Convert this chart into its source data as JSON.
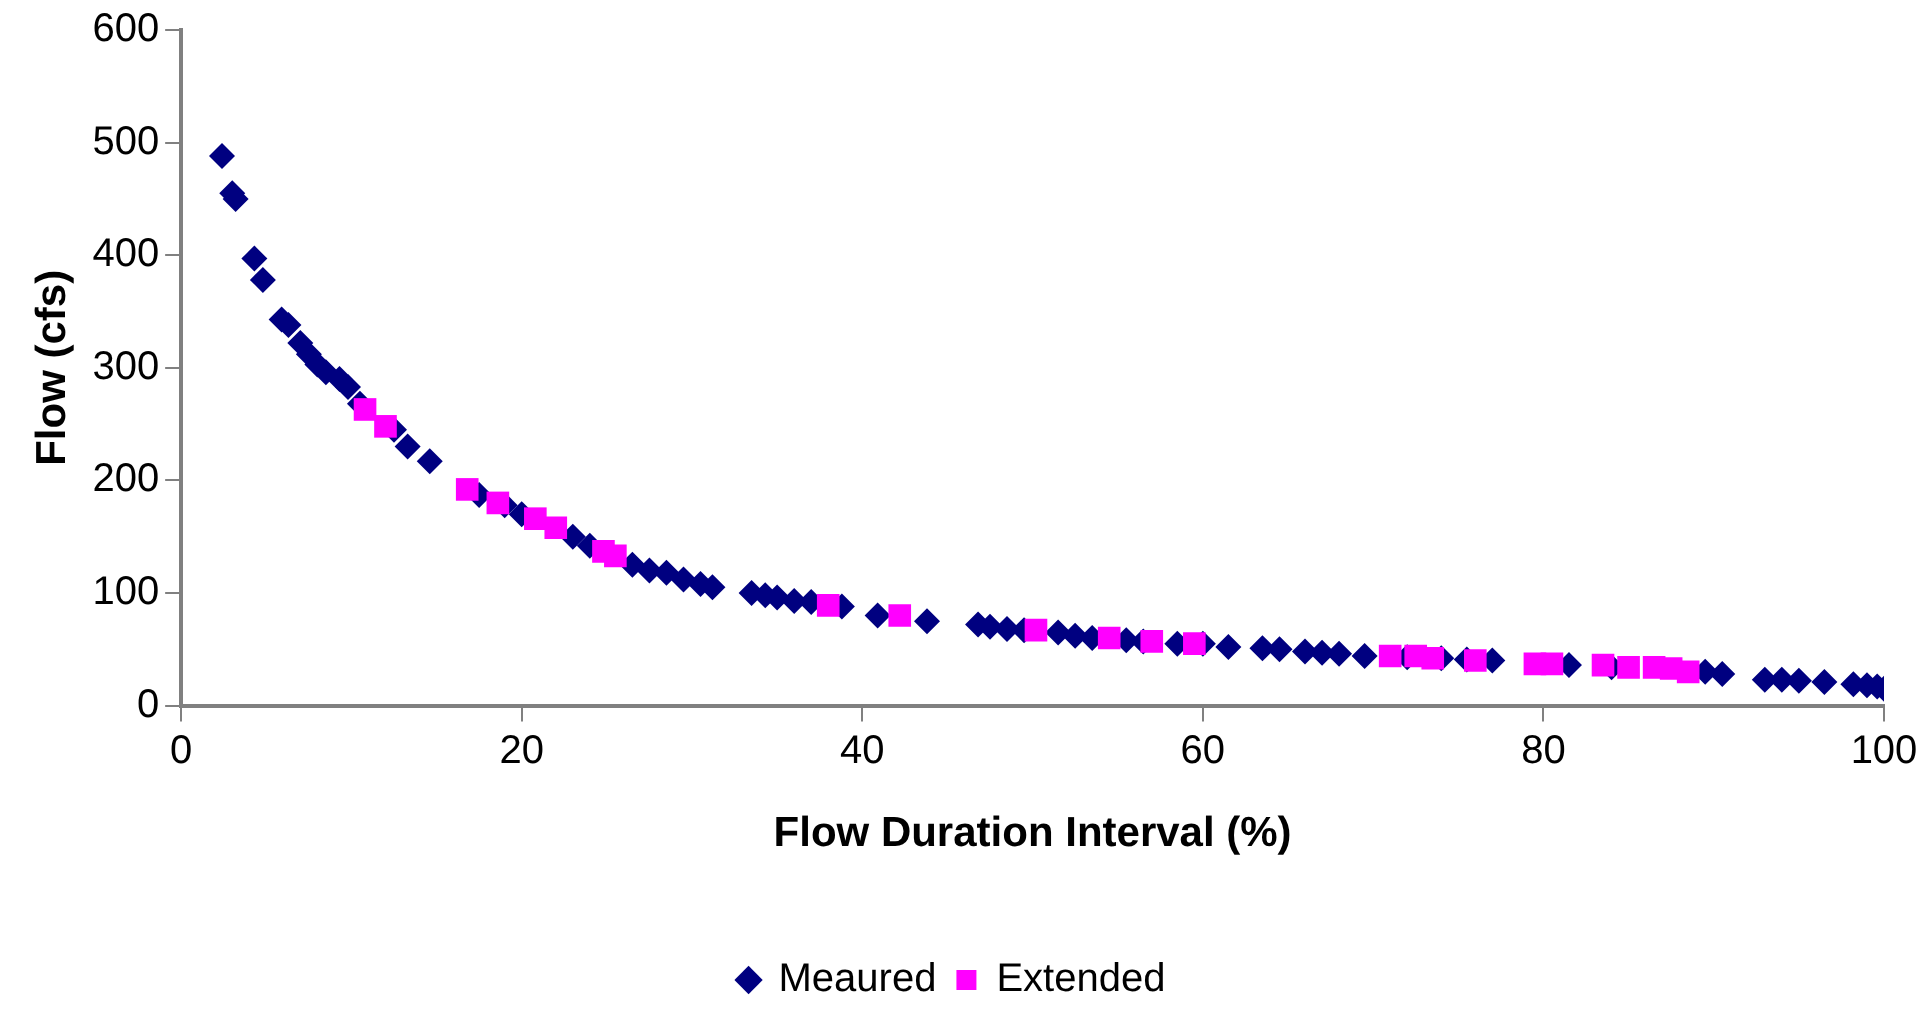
{
  "chart_data": {
    "type": "scatter",
    "xlabel": "Flow Duration Interval (%)",
    "ylabel": "Flow (cfs)",
    "xlim": [
      0,
      100
    ],
    "xticks": [
      0,
      20,
      40,
      60,
      80,
      100
    ],
    "ylim": [
      0,
      600
    ],
    "yticks": [
      0,
      100,
      200,
      300,
      400,
      500,
      600
    ],
    "grid": false,
    "legend": "bottom",
    "series": [
      {
        "name": "Meaured",
        "color": "#000080",
        "marker": "diamond",
        "x": [
          2.4,
          3.0,
          3.2,
          4.3,
          4.8,
          5.9,
          6.3,
          7.0,
          7.5,
          8.0,
          8.5,
          9.3,
          9.8,
          10.5,
          12.5,
          13.3,
          14.6,
          17.5,
          19,
          20,
          23,
          24,
          26.5,
          27.5,
          28.5,
          29.5,
          30.5,
          31.2,
          33.5,
          34.3,
          35,
          36,
          37,
          38.8,
          40.9,
          43.8,
          46.8,
          47.5,
          48.5,
          49.5,
          51.5,
          52.5,
          53.5,
          55.5,
          56.5,
          58.5,
          60,
          61.5,
          63.5,
          64.5,
          66,
          67,
          68,
          69.5,
          72,
          74,
          75.5,
          77,
          81.5,
          84,
          89.5,
          90.5,
          93,
          94,
          95,
          96.5,
          98.2,
          99,
          99.6,
          100
        ],
        "values": [
          488,
          455,
          450,
          397,
          378,
          343,
          338,
          322,
          312,
          303,
          296,
          290,
          283,
          268,
          245,
          230,
          217,
          187,
          178,
          170,
          150,
          142,
          125,
          120,
          118,
          112,
          108,
          105,
          100,
          98,
          96,
          93,
          92,
          88,
          80,
          75,
          72,
          70,
          68,
          67,
          65,
          62,
          60,
          58,
          57,
          55,
          55,
          52,
          51,
          50,
          48,
          47,
          46,
          44,
          43,
          42,
          41,
          40,
          36,
          34,
          30,
          28,
          23,
          23,
          22,
          21,
          19,
          18,
          17,
          15
        ]
      },
      {
        "name": "Extended",
        "color": "#ff00ff",
        "marker": "square",
        "x": [
          10.8,
          12,
          16.8,
          18.6,
          20.8,
          22,
          24.8,
          25.5,
          38,
          42.2,
          50.2,
          54.5,
          57,
          59.5,
          71,
          72.5,
          73.5,
          76,
          79.5,
          80.5,
          83.5,
          85,
          86.5,
          87.5,
          88.5
        ],
        "values": [
          263,
          248,
          192,
          180,
          166,
          158,
          137,
          133,
          89,
          80,
          67,
          60,
          57,
          55,
          44,
          44,
          42,
          40,
          37,
          37,
          36,
          34,
          34,
          33,
          30
        ]
      }
    ]
  }
}
